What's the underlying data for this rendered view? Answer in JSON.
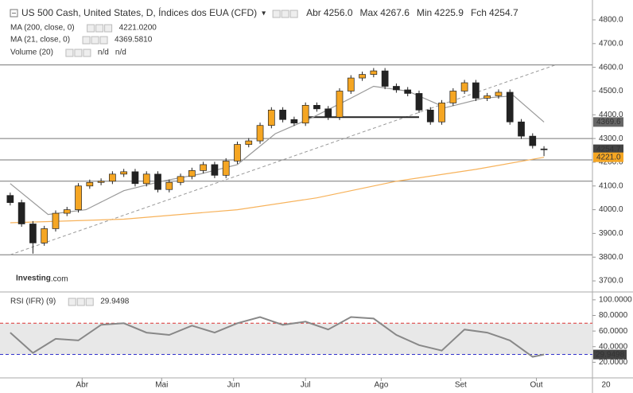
{
  "header": {
    "title": "US 500 Cash, United States, D, Índices dos EUA (CFD)",
    "fields": [
      {
        "label": "Abr",
        "value": "4256.0"
      },
      {
        "label": "Max",
        "value": "4267.6"
      },
      {
        "label": "Min",
        "value": "4225.9"
      },
      {
        "label": "Fch",
        "value": "4254.7"
      }
    ]
  },
  "volume": {
    "name": "Volume (20)",
    "values": [
      "n/d",
      "n/d"
    ]
  },
  "logo": {
    "name": "Investing",
    "suffix": ".com"
  },
  "chart_data": [
    {
      "type": "candlestick",
      "xlim": [
        -2.7,
        153.8
      ],
      "xticks": [
        {
          "value": 19,
          "label": "Abr"
        },
        {
          "value": 40,
          "label": "Mai"
        },
        {
          "value": 59,
          "label": "Jun"
        },
        {
          "value": 78,
          "label": "Jul"
        },
        {
          "value": 98,
          "label": "Ago"
        },
        {
          "value": 119,
          "label": "Set"
        },
        {
          "value": 139,
          "label": "Out"
        }
      ],
      "year_label": "20",
      "x": [
        0,
        3,
        6,
        9,
        12,
        15,
        18,
        21,
        24,
        27,
        30,
        33,
        36,
        39,
        42,
        45,
        48,
        51,
        54,
        57,
        60,
        63,
        66,
        69,
        72,
        75,
        78,
        81,
        84,
        87,
        90,
        93,
        96,
        99,
        102,
        105,
        108,
        111,
        114,
        117,
        120,
        123,
        126,
        129,
        132,
        135,
        138,
        141
      ],
      "open": [
        4060,
        4030,
        3940,
        3860,
        3920,
        3985,
        4000,
        4100,
        4115,
        4120,
        4150,
        4160,
        4110,
        4150,
        4085,
        4115,
        4140,
        4165,
        4190,
        4145,
        4205,
        4275,
        4290,
        4355,
        4420,
        4380,
        4365,
        4440,
        4425,
        4390,
        4500,
        4555,
        4570,
        4585,
        4520,
        4505,
        4490,
        4420,
        4370,
        4450,
        4500,
        4535,
        4470,
        4480,
        4495,
        4370,
        4310,
        4256
      ],
      "high": [
        4072,
        4042,
        3952,
        3932,
        3997,
        4012,
        4112,
        4127,
        4132,
        4162,
        4172,
        4172,
        4162,
        4162,
        4127,
        4152,
        4177,
        4202,
        4202,
        4217,
        4287,
        4302,
        4367,
        4432,
        4432,
        4392,
        4452,
        4452,
        4437,
        4512,
        4567,
        4582,
        4597,
        4597,
        4532,
        4517,
        4502,
        4432,
        4462,
        4512,
        4547,
        4547,
        4492,
        4507,
        4507,
        4382,
        4322,
        4267.6
      ],
      "low": [
        4018,
        3928,
        3815,
        3848,
        3908,
        3973,
        3988,
        4088,
        4103,
        4108,
        4138,
        4098,
        4098,
        4073,
        4073,
        4103,
        4128,
        4153,
        4133,
        4133,
        4193,
        4263,
        4278,
        4343,
        4368,
        4353,
        4353,
        4413,
        4378,
        4378,
        4488,
        4543,
        4558,
        4508,
        4493,
        4478,
        4408,
        4358,
        4358,
        4438,
        4488,
        4458,
        4458,
        4468,
        4358,
        4298,
        4258,
        4225.9
      ],
      "close": [
        4030,
        3940,
        3860,
        3920,
        3985,
        4000,
        4100,
        4115,
        4120,
        4150,
        4160,
        4110,
        4150,
        4085,
        4115,
        4140,
        4165,
        4190,
        4145,
        4205,
        4275,
        4290,
        4355,
        4420,
        4380,
        4365,
        4440,
        4425,
        4390,
        4500,
        4555,
        4570,
        4585,
        4520,
        4505,
        4490,
        4420,
        4370,
        4450,
        4500,
        4535,
        4470,
        4480,
        4495,
        4370,
        4310,
        4270,
        4254.7
      ],
      "up_color": "#f5a623",
      "down_color": "#222222",
      "series": [
        {
          "name": "MA (200, close, 0)",
          "legend_value": "4221.0200",
          "color": "#f7b25a",
          "x": [
            0,
            30,
            60,
            81,
            102,
            123,
            141
          ],
          "values": [
            3945,
            3960,
            4000,
            4050,
            4120,
            4170,
            4221.02
          ]
        },
        {
          "name": "MA (21, close, 0)",
          "legend_value": "4369.5810",
          "color": "#999999",
          "x": [
            0,
            10,
            20,
            30,
            40,
            50,
            60,
            70,
            80,
            90,
            96,
            105,
            115,
            125,
            133,
            141
          ],
          "values": [
            4110,
            3980,
            4000,
            4080,
            4120,
            4150,
            4190,
            4320,
            4390,
            4470,
            4520,
            4500,
            4430,
            4470,
            4480,
            4369.58
          ]
        }
      ],
      "ylim": [
        3660,
        4867
      ],
      "yticks": [
        {
          "value": 4800,
          "label": "4800.0"
        },
        {
          "value": 4700,
          "label": "4700.0"
        },
        {
          "value": 4600,
          "label": "4600.0"
        },
        {
          "value": 4500,
          "label": "4500.0"
        },
        {
          "value": 4400,
          "label": "4400.0"
        },
        {
          "value": 4300,
          "label": "4300.0"
        },
        {
          "value": 4200,
          "label": "4200.0"
        },
        {
          "value": 4100,
          "label": "4100.0"
        },
        {
          "value": 4000,
          "label": "4000.0"
        },
        {
          "value": 3900,
          "label": "3900.0"
        },
        {
          "value": 3800,
          "label": "3800.0"
        },
        {
          "value": 3700,
          "label": "3700.0"
        }
      ],
      "price_tags": [
        {
          "value": 4369.6,
          "label": "4369.6",
          "color": "#666666"
        },
        {
          "value": 4254.7,
          "label": "4254.7",
          "color": "#444444"
        },
        {
          "value": 4221.0,
          "label": "4221.0",
          "color": "#f5a623"
        }
      ],
      "hlines": [
        4610,
        4300,
        4210,
        4120,
        3810
      ],
      "h_segment": {
        "x": [
          78,
          108
        ],
        "value": 4390
      },
      "trend_line": {
        "x": [
          0,
          144
        ],
        "values": [
          3810,
          4610
        ]
      }
    },
    {
      "type": "line",
      "name": "RSI (IFR) (9)",
      "legend_value": "29.9498",
      "color": "#888888",
      "x": [
        0,
        6,
        12,
        18,
        24,
        30,
        36,
        42,
        48,
        54,
        60,
        66,
        72,
        78,
        84,
        90,
        96,
        102,
        108,
        114,
        120,
        126,
        132,
        138,
        141
      ],
      "values": [
        58,
        32,
        50,
        48,
        68,
        70,
        58,
        55,
        67,
        58,
        70,
        78,
        68,
        72,
        62,
        78,
        76,
        55,
        42,
        35,
        62,
        58,
        48,
        27,
        29.9498
      ],
      "ylim": [
        0,
        107
      ],
      "yticks": [
        {
          "value": 100,
          "label": "100.0000"
        },
        {
          "value": 80,
          "label": "80.0000"
        },
        {
          "value": 60,
          "label": "60.0000"
        },
        {
          "value": 40,
          "label": "40.0000"
        },
        {
          "value": 20,
          "label": "20.0000"
        }
      ],
      "overbought": 70,
      "oversold": 30,
      "band_color": "#e8e8e8",
      "price_tag": {
        "value": 29.9498,
        "label": "29.9498"
      }
    }
  ]
}
